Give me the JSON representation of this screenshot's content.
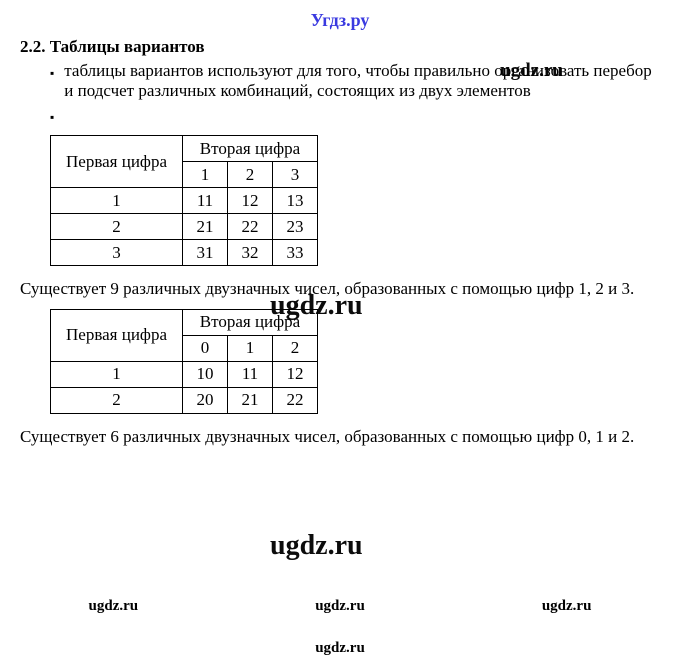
{
  "site": "Угдз.ру",
  "watermark": "ugdz.ru",
  "section": {
    "number": "2.2.",
    "title": "Таблицы вариантов"
  },
  "bullet1": "таблицы вариантов используют для того, чтобы правильно организовать перебор и подсчет различных комбинаций, состоящих из двух элементов",
  "table1": {
    "head_first": "Первая цифра",
    "head_second": "Вторая цифра",
    "sub": [
      "1",
      "2",
      "3"
    ],
    "rows": [
      {
        "first": "1",
        "cells": [
          "11",
          "12",
          "13"
        ]
      },
      {
        "first": "2",
        "cells": [
          "21",
          "22",
          "23"
        ]
      },
      {
        "first": "3",
        "cells": [
          "31",
          "32",
          "33"
        ]
      }
    ]
  },
  "para1": "Существует 9 различных двузначных чисел, образованных с помощью цифр 1, 2 и 3.",
  "table2": {
    "head_first": "Первая цифра",
    "head_second": "Вторая цифра",
    "sub": [
      "0",
      "1",
      "2"
    ],
    "rows": [
      {
        "first": "1",
        "cells": [
          "10",
          "11",
          "12"
        ]
      },
      {
        "first": "2",
        "cells": [
          "20",
          "21",
          "22"
        ]
      }
    ]
  },
  "para2": "Существует 6 различных двузначных чисел, образованных с помощью цифр 0, 1 и 2."
}
